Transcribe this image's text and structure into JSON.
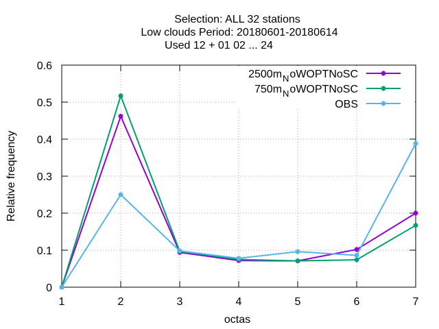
{
  "chart_data": {
    "type": "line",
    "title_lines": [
      "Selection: ALL      32 stations",
      "Low clouds  Period: 20180601-20180614",
      "Used  12 + 01 02 ... 24"
    ],
    "xlabel": "octas",
    "ylabel": "Relative frequency",
    "x": [
      1,
      2,
      3,
      4,
      5,
      6,
      7
    ],
    "xlim": [
      1,
      7
    ],
    "ylim": [
      0,
      0.6
    ],
    "x_ticks": [
      "1",
      "2",
      "3",
      "4",
      "5",
      "6",
      "7"
    ],
    "y_ticks": [
      "0",
      "0.1",
      "0.2",
      "0.3",
      "0.4",
      "0.5",
      "0.6"
    ],
    "grid": true,
    "legend_position": "top-right",
    "series": [
      {
        "name_main": "2500m",
        "name_sub": "N",
        "name_rest": "oWOPTNoSC",
        "color": "#9400d3",
        "values": [
          0.0,
          0.462,
          0.094,
          0.072,
          0.071,
          0.102,
          0.2
        ]
      },
      {
        "name_main": "750m",
        "name_sub": "N",
        "name_rest": "oWOPTNoSC",
        "color": "#009e73",
        "values": [
          0.0,
          0.517,
          0.097,
          0.075,
          0.071,
          0.074,
          0.167
        ]
      },
      {
        "name_main": "OBS",
        "name_sub": "",
        "name_rest": "",
        "color": "#56b4e9",
        "values": [
          0.0,
          0.25,
          0.098,
          0.078,
          0.096,
          0.086,
          0.388
        ]
      }
    ]
  }
}
